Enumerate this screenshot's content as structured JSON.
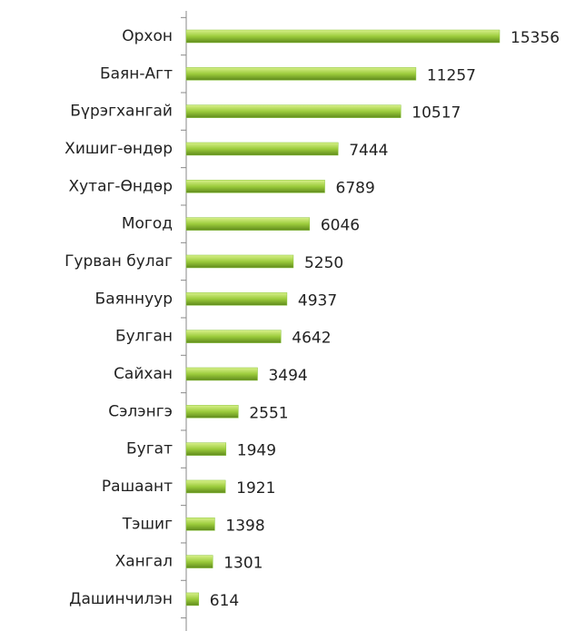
{
  "chart_data": {
    "type": "bar",
    "orientation": "horizontal",
    "color": "#8cc63f",
    "categories": [
      "Орхон",
      "Баян-Агт",
      "Бүрэгхангай",
      "Хишиг-өндөр",
      "Хутаг-Өндөр",
      "Могод",
      "Гурван булаг",
      "Баяннуур",
      "Булган",
      "Сайхан",
      "Сэлэнгэ",
      "Бугат",
      "Рашаант",
      "Тэшиг",
      "Хангал",
      "Дашинчилэн"
    ],
    "values": [
      15356,
      11257,
      10517,
      7444,
      6789,
      6046,
      5250,
      4937,
      4642,
      3494,
      2551,
      1949,
      1921,
      1398,
      1301,
      614
    ]
  }
}
